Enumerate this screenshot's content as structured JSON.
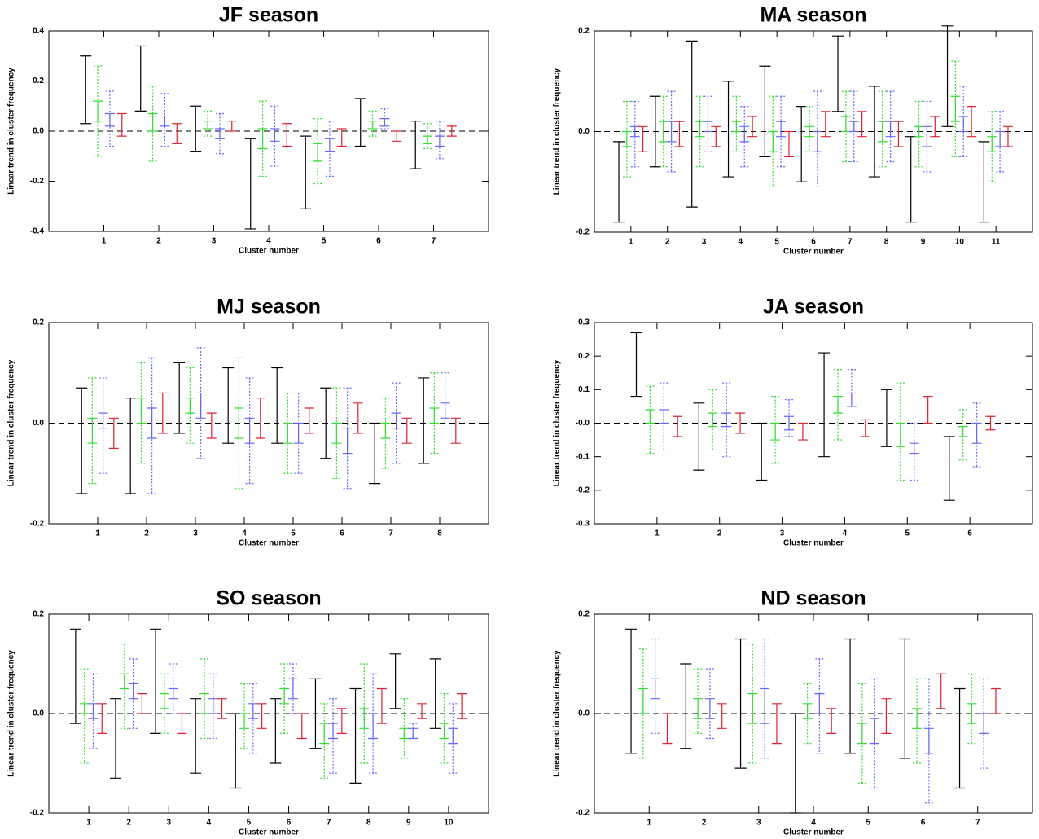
{
  "chart_data": [
    {
      "type": "errorbar",
      "title": "JF season",
      "x_label": "Cluster number",
      "y_label": "Linear trend in cluster frequency",
      "x": [
        1,
        2,
        3,
        4,
        5,
        6,
        7
      ],
      "xlim": [
        0,
        8
      ],
      "ylim": [
        -0.4,
        0.4
      ],
      "yticks": [
        -0.4,
        -0.2,
        {
          "value": 0,
          "label": "0.0"
        },
        0.2,
        0.4
      ],
      "zero_line": true,
      "series": [
        {
          "color": "#000000",
          "dashed": false,
          "low": [
            0.03,
            0.08,
            -0.08,
            -0.39,
            -0.31,
            -0.06,
            -0.15
          ],
          "high": [
            0.3,
            0.34,
            0.1,
            -0.03,
            -0.02,
            0.13,
            0.04
          ]
        },
        {
          "color": "#33dd33",
          "dashed": true,
          "low": [
            -0.1,
            -0.12,
            -0.02,
            -0.18,
            -0.21,
            -0.02,
            -0.07
          ],
          "high": [
            0.26,
            0.18,
            0.08,
            0.12,
            0.05,
            0.08,
            0.03
          ]
        },
        {
          "color": "#33dd33",
          "dashed": false,
          "low": [
            0.04,
            0.0,
            0.01,
            -0.07,
            -0.12,
            0.01,
            -0.05
          ],
          "high": [
            0.12,
            0.07,
            0.04,
            0.01,
            -0.05,
            0.04,
            -0.02
          ]
        },
        {
          "color": "#6666ff",
          "dashed": true,
          "low": [
            -0.06,
            -0.06,
            -0.09,
            -0.14,
            -0.18,
            0.01,
            -0.11
          ],
          "high": [
            0.16,
            0.15,
            0.07,
            0.1,
            0.04,
            0.09,
            0.04
          ]
        },
        {
          "color": "#6666ff",
          "dashed": false,
          "low": [
            0.02,
            0.02,
            -0.03,
            -0.04,
            -0.08,
            0.02,
            -0.06
          ],
          "high": [
            0.07,
            0.06,
            0.01,
            0.01,
            -0.03,
            0.05,
            -0.02
          ]
        },
        {
          "color": "#dd2233",
          "dashed": false,
          "low": [
            -0.02,
            -0.05,
            0.0,
            -0.06,
            -0.06,
            -0.04,
            -0.02
          ],
          "high": [
            0.07,
            0.03,
            0.04,
            0.03,
            0.01,
            0.0,
            0.02
          ]
        }
      ]
    },
    {
      "type": "errorbar",
      "title": "MA season",
      "x_label": "Cluster number",
      "y_label": "Linear trend in cluster frequency",
      "x": [
        1,
        2,
        3,
        4,
        5,
        6,
        7,
        8,
        9,
        10,
        11
      ],
      "xlim": [
        0,
        12
      ],
      "ylim": [
        -0.2,
        0.2
      ],
      "yticks": [
        -0.2,
        {
          "value": 0,
          "label": "0.0"
        },
        0.2
      ],
      "zero_line": true,
      "series": [
        {
          "color": "#000000",
          "dashed": false,
          "low": [
            -0.18,
            -0.07,
            -0.15,
            -0.09,
            -0.05,
            -0.1,
            0.04,
            -0.09,
            -0.18,
            0.01,
            -0.18
          ],
          "high": [
            -0.02,
            0.07,
            0.18,
            0.1,
            0.13,
            0.05,
            0.19,
            0.09,
            -0.01,
            0.21,
            -0.02
          ]
        },
        {
          "color": "#33dd33",
          "dashed": true,
          "low": [
            -0.09,
            -0.07,
            -0.07,
            -0.04,
            -0.11,
            -0.04,
            -0.06,
            -0.07,
            -0.07,
            -0.05,
            -0.1
          ],
          "high": [
            0.06,
            0.07,
            0.07,
            0.07,
            0.07,
            0.05,
            0.08,
            0.08,
            0.06,
            0.14,
            0.04
          ]
        },
        {
          "color": "#33dd33",
          "dashed": false,
          "low": [
            -0.03,
            -0.02,
            -0.01,
            0.0,
            -0.04,
            -0.01,
            0.0,
            -0.02,
            -0.01,
            0.02,
            -0.04
          ],
          "high": [
            0.0,
            0.02,
            0.02,
            0.02,
            0.0,
            0.01,
            0.03,
            0.02,
            0.01,
            0.07,
            -0.01
          ]
        },
        {
          "color": "#6666ff",
          "dashed": true,
          "low": [
            -0.07,
            -0.08,
            -0.04,
            -0.07,
            -0.07,
            -0.11,
            -0.06,
            -0.06,
            -0.08,
            -0.05,
            -0.08
          ],
          "high": [
            0.06,
            0.08,
            0.07,
            0.05,
            0.07,
            0.08,
            0.08,
            0.08,
            0.06,
            0.09,
            0.04
          ]
        },
        {
          "color": "#6666ff",
          "dashed": false,
          "low": [
            -0.01,
            -0.02,
            0.0,
            -0.02,
            -0.01,
            -0.04,
            0.0,
            -0.01,
            -0.03,
            0.0,
            -0.03
          ],
          "high": [
            0.01,
            0.02,
            0.02,
            0.01,
            0.02,
            0.0,
            0.02,
            0.02,
            0.01,
            0.03,
            0.0
          ]
        },
        {
          "color": "#dd2233",
          "dashed": false,
          "low": [
            -0.04,
            -0.03,
            -0.03,
            -0.01,
            -0.05,
            -0.01,
            -0.01,
            -0.03,
            -0.01,
            -0.01,
            -0.03
          ],
          "high": [
            0.01,
            0.02,
            0.01,
            0.03,
            0.0,
            0.04,
            0.04,
            0.02,
            0.03,
            0.05,
            0.01
          ]
        }
      ]
    },
    {
      "type": "errorbar",
      "title": "MJ season",
      "x_label": "Cluster number",
      "y_label": "Linear trend in cluster frequency",
      "x": [
        1,
        2,
        3,
        4,
        5,
        6,
        7,
        8
      ],
      "xlim": [
        0,
        9
      ],
      "ylim": [
        -0.2,
        0.2
      ],
      "yticks": [
        -0.2,
        {
          "value": 0,
          "label": "0.0"
        },
        0.2
      ],
      "zero_line": true,
      "series": [
        {
          "color": "#000000",
          "dashed": false,
          "low": [
            -0.14,
            -0.14,
            -0.02,
            -0.04,
            -0.04,
            -0.07,
            -0.12,
            -0.08
          ],
          "high": [
            0.07,
            0.05,
            0.12,
            0.11,
            0.11,
            0.07,
            0.0,
            0.09
          ]
        },
        {
          "color": "#33dd33",
          "dashed": true,
          "low": [
            -0.12,
            -0.08,
            -0.04,
            -0.13,
            -0.1,
            -0.11,
            -0.09,
            -0.06
          ],
          "high": [
            0.09,
            0.12,
            0.11,
            0.13,
            0.06,
            0.07,
            0.05,
            0.1
          ]
        },
        {
          "color": "#33dd33",
          "dashed": false,
          "low": [
            -0.04,
            0.0,
            0.02,
            -0.03,
            -0.04,
            -0.04,
            -0.03,
            0.0
          ],
          "high": [
            0.01,
            0.05,
            0.05,
            0.03,
            0.0,
            0.0,
            0.0,
            0.03
          ]
        },
        {
          "color": "#6666ff",
          "dashed": true,
          "low": [
            -0.1,
            -0.14,
            -0.07,
            -0.12,
            -0.1,
            -0.13,
            -0.08,
            -0.01
          ],
          "high": [
            0.09,
            0.13,
            0.15,
            0.09,
            0.06,
            0.07,
            0.08,
            0.1
          ]
        },
        {
          "color": "#6666ff",
          "dashed": false,
          "low": [
            -0.01,
            -0.03,
            0.01,
            -0.04,
            -0.04,
            -0.06,
            -0.01,
            0.01
          ],
          "high": [
            0.02,
            0.03,
            0.06,
            0.01,
            0.0,
            -0.01,
            0.02,
            0.04
          ]
        },
        {
          "color": "#dd2233",
          "dashed": false,
          "low": [
            -0.05,
            -0.02,
            -0.03,
            -0.03,
            -0.02,
            -0.02,
            -0.04,
            -0.04
          ],
          "high": [
            0.01,
            0.06,
            0.02,
            0.05,
            0.03,
            0.04,
            0.01,
            0.01
          ]
        }
      ]
    },
    {
      "type": "errorbar",
      "title": "JA season",
      "x_label": "Cluster number",
      "y_label": "Linear trend in cluster frequency",
      "x": [
        1,
        2,
        3,
        4,
        5,
        6
      ],
      "xlim": [
        0,
        7
      ],
      "ylim": [
        -0.3,
        0.3
      ],
      "yticks": [
        -0.3,
        -0.2,
        -0.1,
        {
          "value": 0,
          "label": "-0.0"
        },
        0.1,
        0.2,
        0.3
      ],
      "zero_line": true,
      "series": [
        {
          "color": "#000000",
          "dashed": false,
          "low": [
            0.08,
            -0.14,
            -0.17,
            -0.1,
            -0.07,
            -0.23
          ],
          "high": [
            0.27,
            0.06,
            0.0,
            0.21,
            0.1,
            -0.04
          ]
        },
        {
          "color": "#33dd33",
          "dashed": true,
          "low": [
            -0.09,
            -0.08,
            -0.12,
            -0.05,
            -0.17,
            -0.11
          ],
          "high": [
            0.11,
            0.1,
            0.08,
            0.16,
            0.12,
            0.04
          ]
        },
        {
          "color": "#33dd33",
          "dashed": false,
          "low": [
            0.0,
            -0.01,
            -0.05,
            0.03,
            -0.07,
            -0.04
          ],
          "high": [
            0.04,
            0.03,
            0.0,
            0.08,
            0.0,
            -0.01
          ]
        },
        {
          "color": "#6666ff",
          "dashed": true,
          "low": [
            -0.08,
            -0.1,
            -0.04,
            0.05,
            -0.17,
            -0.13
          ],
          "high": [
            0.12,
            0.12,
            0.07,
            0.16,
            0.0,
            0.06
          ]
        },
        {
          "color": "#6666ff",
          "dashed": false,
          "low": [
            0.0,
            -0.01,
            -0.02,
            0.05,
            -0.09,
            -0.06
          ],
          "high": [
            0.04,
            0.03,
            0.02,
            0.09,
            -0.06,
            0.0
          ]
        },
        {
          "color": "#dd2233",
          "dashed": false,
          "low": [
            -0.04,
            -0.03,
            -0.05,
            -0.04,
            0.0,
            -0.02
          ],
          "high": [
            0.02,
            0.03,
            0.0,
            0.01,
            0.08,
            0.02
          ]
        }
      ]
    },
    {
      "type": "errorbar",
      "title": "SO season",
      "x_label": "Cluster number",
      "y_label": "Linear trend in cluster frequency",
      "x": [
        1,
        2,
        3,
        4,
        5,
        6,
        7,
        8,
        9,
        10
      ],
      "xlim": [
        0,
        11
      ],
      "ylim": [
        -0.2,
        0.2
      ],
      "yticks": [
        -0.2,
        {
          "value": 0,
          "label": "0.0"
        },
        0.2
      ],
      "zero_line": true,
      "series": [
        {
          "color": "#000000",
          "dashed": false,
          "low": [
            -0.02,
            -0.13,
            -0.04,
            -0.12,
            -0.15,
            -0.1,
            -0.07,
            -0.14,
            0.01,
            -0.03
          ],
          "high": [
            0.17,
            0.03,
            0.17,
            0.03,
            0.0,
            0.03,
            0.07,
            0.05,
            0.12,
            0.11
          ]
        },
        {
          "color": "#33dd33",
          "dashed": true,
          "low": [
            -0.1,
            -0.03,
            -0.04,
            -0.05,
            -0.07,
            -0.04,
            -0.13,
            -0.1,
            -0.09,
            -0.1
          ],
          "high": [
            0.09,
            0.14,
            0.08,
            0.11,
            0.06,
            0.1,
            0.02,
            0.1,
            0.03,
            0.04
          ]
        },
        {
          "color": "#33dd33",
          "dashed": false,
          "low": [
            0.0,
            0.05,
            0.01,
            0.0,
            -0.03,
            0.02,
            -0.06,
            -0.03,
            -0.05,
            -0.05
          ],
          "high": [
            0.02,
            0.08,
            0.04,
            0.04,
            0.0,
            0.05,
            -0.02,
            0.01,
            -0.03,
            -0.02
          ]
        },
        {
          "color": "#6666ff",
          "dashed": true,
          "low": [
            -0.07,
            -0.03,
            0.0,
            -0.05,
            -0.08,
            0.0,
            -0.12,
            -0.12,
            -0.05,
            -0.12
          ],
          "high": [
            0.08,
            0.11,
            0.1,
            0.08,
            0.06,
            0.1,
            0.03,
            0.08,
            -0.02,
            0.02
          ]
        },
        {
          "color": "#6666ff",
          "dashed": false,
          "low": [
            -0.01,
            0.03,
            0.03,
            0.0,
            -0.01,
            0.03,
            -0.05,
            -0.05,
            -0.05,
            -0.06
          ],
          "high": [
            0.02,
            0.06,
            0.05,
            0.03,
            0.02,
            0.07,
            -0.02,
            0.0,
            -0.03,
            -0.03
          ]
        },
        {
          "color": "#dd2233",
          "dashed": false,
          "low": [
            -0.04,
            0.0,
            -0.04,
            -0.01,
            -0.03,
            -0.05,
            -0.04,
            -0.02,
            -0.01,
            -0.01
          ],
          "high": [
            0.02,
            0.04,
            0.0,
            0.03,
            0.02,
            0.0,
            0.01,
            0.05,
            0.02,
            0.04
          ]
        }
      ]
    },
    {
      "type": "errorbar",
      "title": "ND season",
      "x_label": "Cluster number",
      "y_label": "Linear trend in cluster frequency",
      "x": [
        1,
        2,
        3,
        4,
        5,
        6,
        7
      ],
      "xlim": [
        0,
        8
      ],
      "ylim": [
        -0.2,
        0.2
      ],
      "yticks": [
        -0.2,
        {
          "value": 0,
          "label": "0.0"
        },
        0.2
      ],
      "zero_line": true,
      "series": [
        {
          "color": "#000000",
          "dashed": false,
          "low": [
            -0.08,
            -0.07,
            -0.11,
            -0.2,
            -0.08,
            -0.09,
            -0.15
          ],
          "high": [
            0.17,
            0.1,
            0.15,
            0.0,
            0.15,
            0.15,
            0.05
          ]
        },
        {
          "color": "#33dd33",
          "dashed": true,
          "low": [
            -0.09,
            -0.04,
            -0.1,
            -0.06,
            -0.14,
            -0.1,
            -0.06
          ],
          "high": [
            0.13,
            0.09,
            0.14,
            0.06,
            0.06,
            0.07,
            0.08
          ]
        },
        {
          "color": "#33dd33",
          "dashed": false,
          "low": [
            0.0,
            -0.01,
            -0.02,
            -0.01,
            -0.06,
            -0.03,
            -0.02
          ],
          "high": [
            0.05,
            0.03,
            0.04,
            0.02,
            -0.02,
            0.01,
            0.02
          ]
        },
        {
          "color": "#6666ff",
          "dashed": true,
          "low": [
            -0.04,
            -0.05,
            -0.09,
            -0.08,
            -0.15,
            -0.18,
            -0.11
          ],
          "high": [
            0.15,
            0.09,
            0.15,
            0.11,
            0.07,
            0.07,
            0.07
          ]
        },
        {
          "color": "#6666ff",
          "dashed": false,
          "low": [
            0.03,
            -0.01,
            -0.02,
            0.0,
            -0.06,
            -0.08,
            -0.04
          ],
          "high": [
            0.07,
            0.03,
            0.05,
            0.04,
            -0.01,
            -0.03,
            0.0
          ]
        },
        {
          "color": "#dd2233",
          "dashed": false,
          "low": [
            -0.06,
            -0.03,
            -0.06,
            -0.04,
            -0.04,
            0.01,
            0.0
          ],
          "high": [
            0.0,
            0.02,
            0.02,
            0.01,
            0.03,
            0.08,
            0.05
          ]
        }
      ]
    }
  ]
}
